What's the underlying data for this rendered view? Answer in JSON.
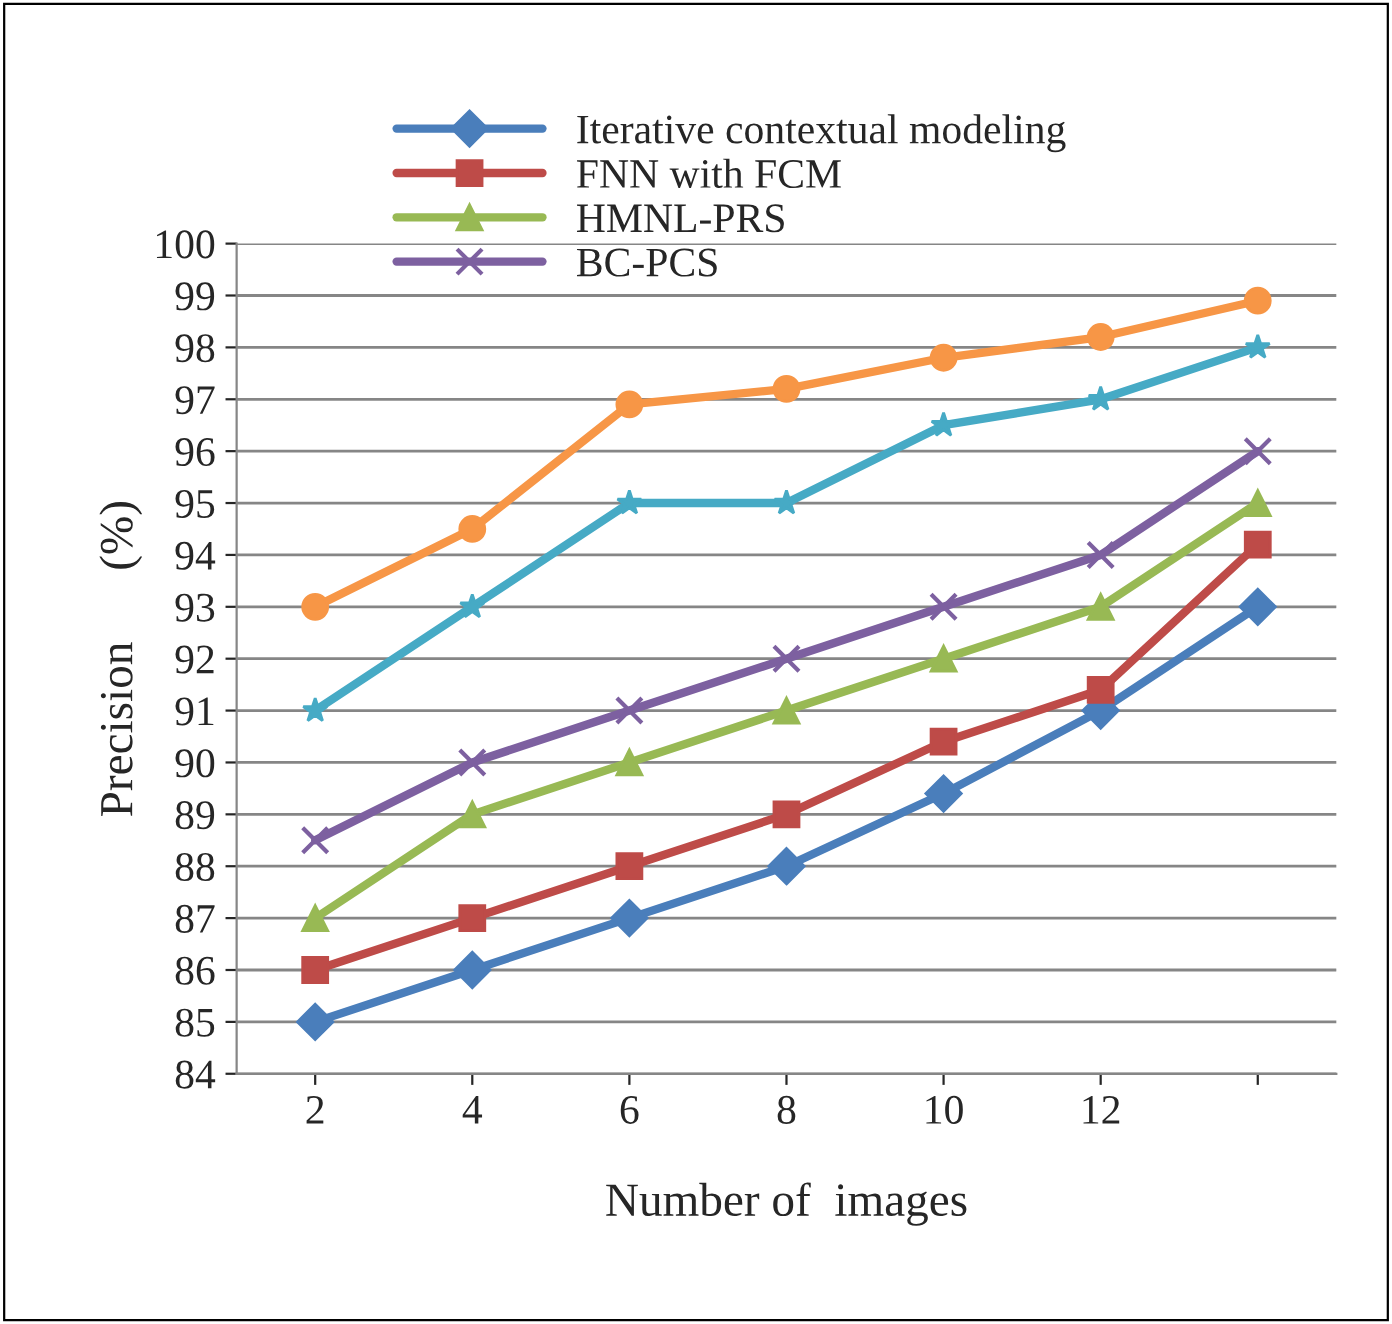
{
  "chart_data": {
    "type": "line",
    "xlabel": "Number of  images",
    "ylabel": "Precision      (%)",
    "categories": [
      "2",
      "4",
      "6",
      "8",
      "10",
      "12",
      null
    ],
    "series": [
      {
        "name": "Iterative contextual modeling",
        "color": "#4a7ebb",
        "marker": "diamond",
        "values": [
          85,
          86,
          87,
          88,
          89.4,
          91,
          93
        ]
      },
      {
        "name": "FNN with FCM",
        "color": "#be4b48",
        "marker": "square",
        "values": [
          86,
          87,
          88,
          89,
          90.4,
          91.4,
          94.2
        ]
      },
      {
        "name": "HMNL-PRS",
        "color": "#98b954",
        "marker": "triangle",
        "values": [
          87,
          89,
          90,
          91,
          92,
          93,
          95
        ]
      },
      {
        "name": "BC-PCS",
        "color": "#7d60a0",
        "marker": "cross",
        "values": [
          88.5,
          90,
          91,
          92,
          93,
          94,
          96
        ]
      },
      {
        "color": "#46aac5",
        "marker": "star",
        "values": [
          91,
          93,
          95,
          95,
          96.5,
          97,
          98
        ]
      },
      {
        "color": "#f79646",
        "marker": "circle",
        "values": [
          93,
          94.5,
          96.9,
          97.2,
          97.8,
          98.2,
          98.9
        ]
      }
    ],
    "ylim": [
      84,
      100
    ],
    "yticks": [
      84,
      85,
      86,
      87,
      88,
      89,
      90,
      91,
      92,
      93,
      94,
      95,
      96,
      97,
      98,
      99,
      100
    ],
    "grid": "y",
    "legend": "top",
    "line_style": "solid"
  }
}
